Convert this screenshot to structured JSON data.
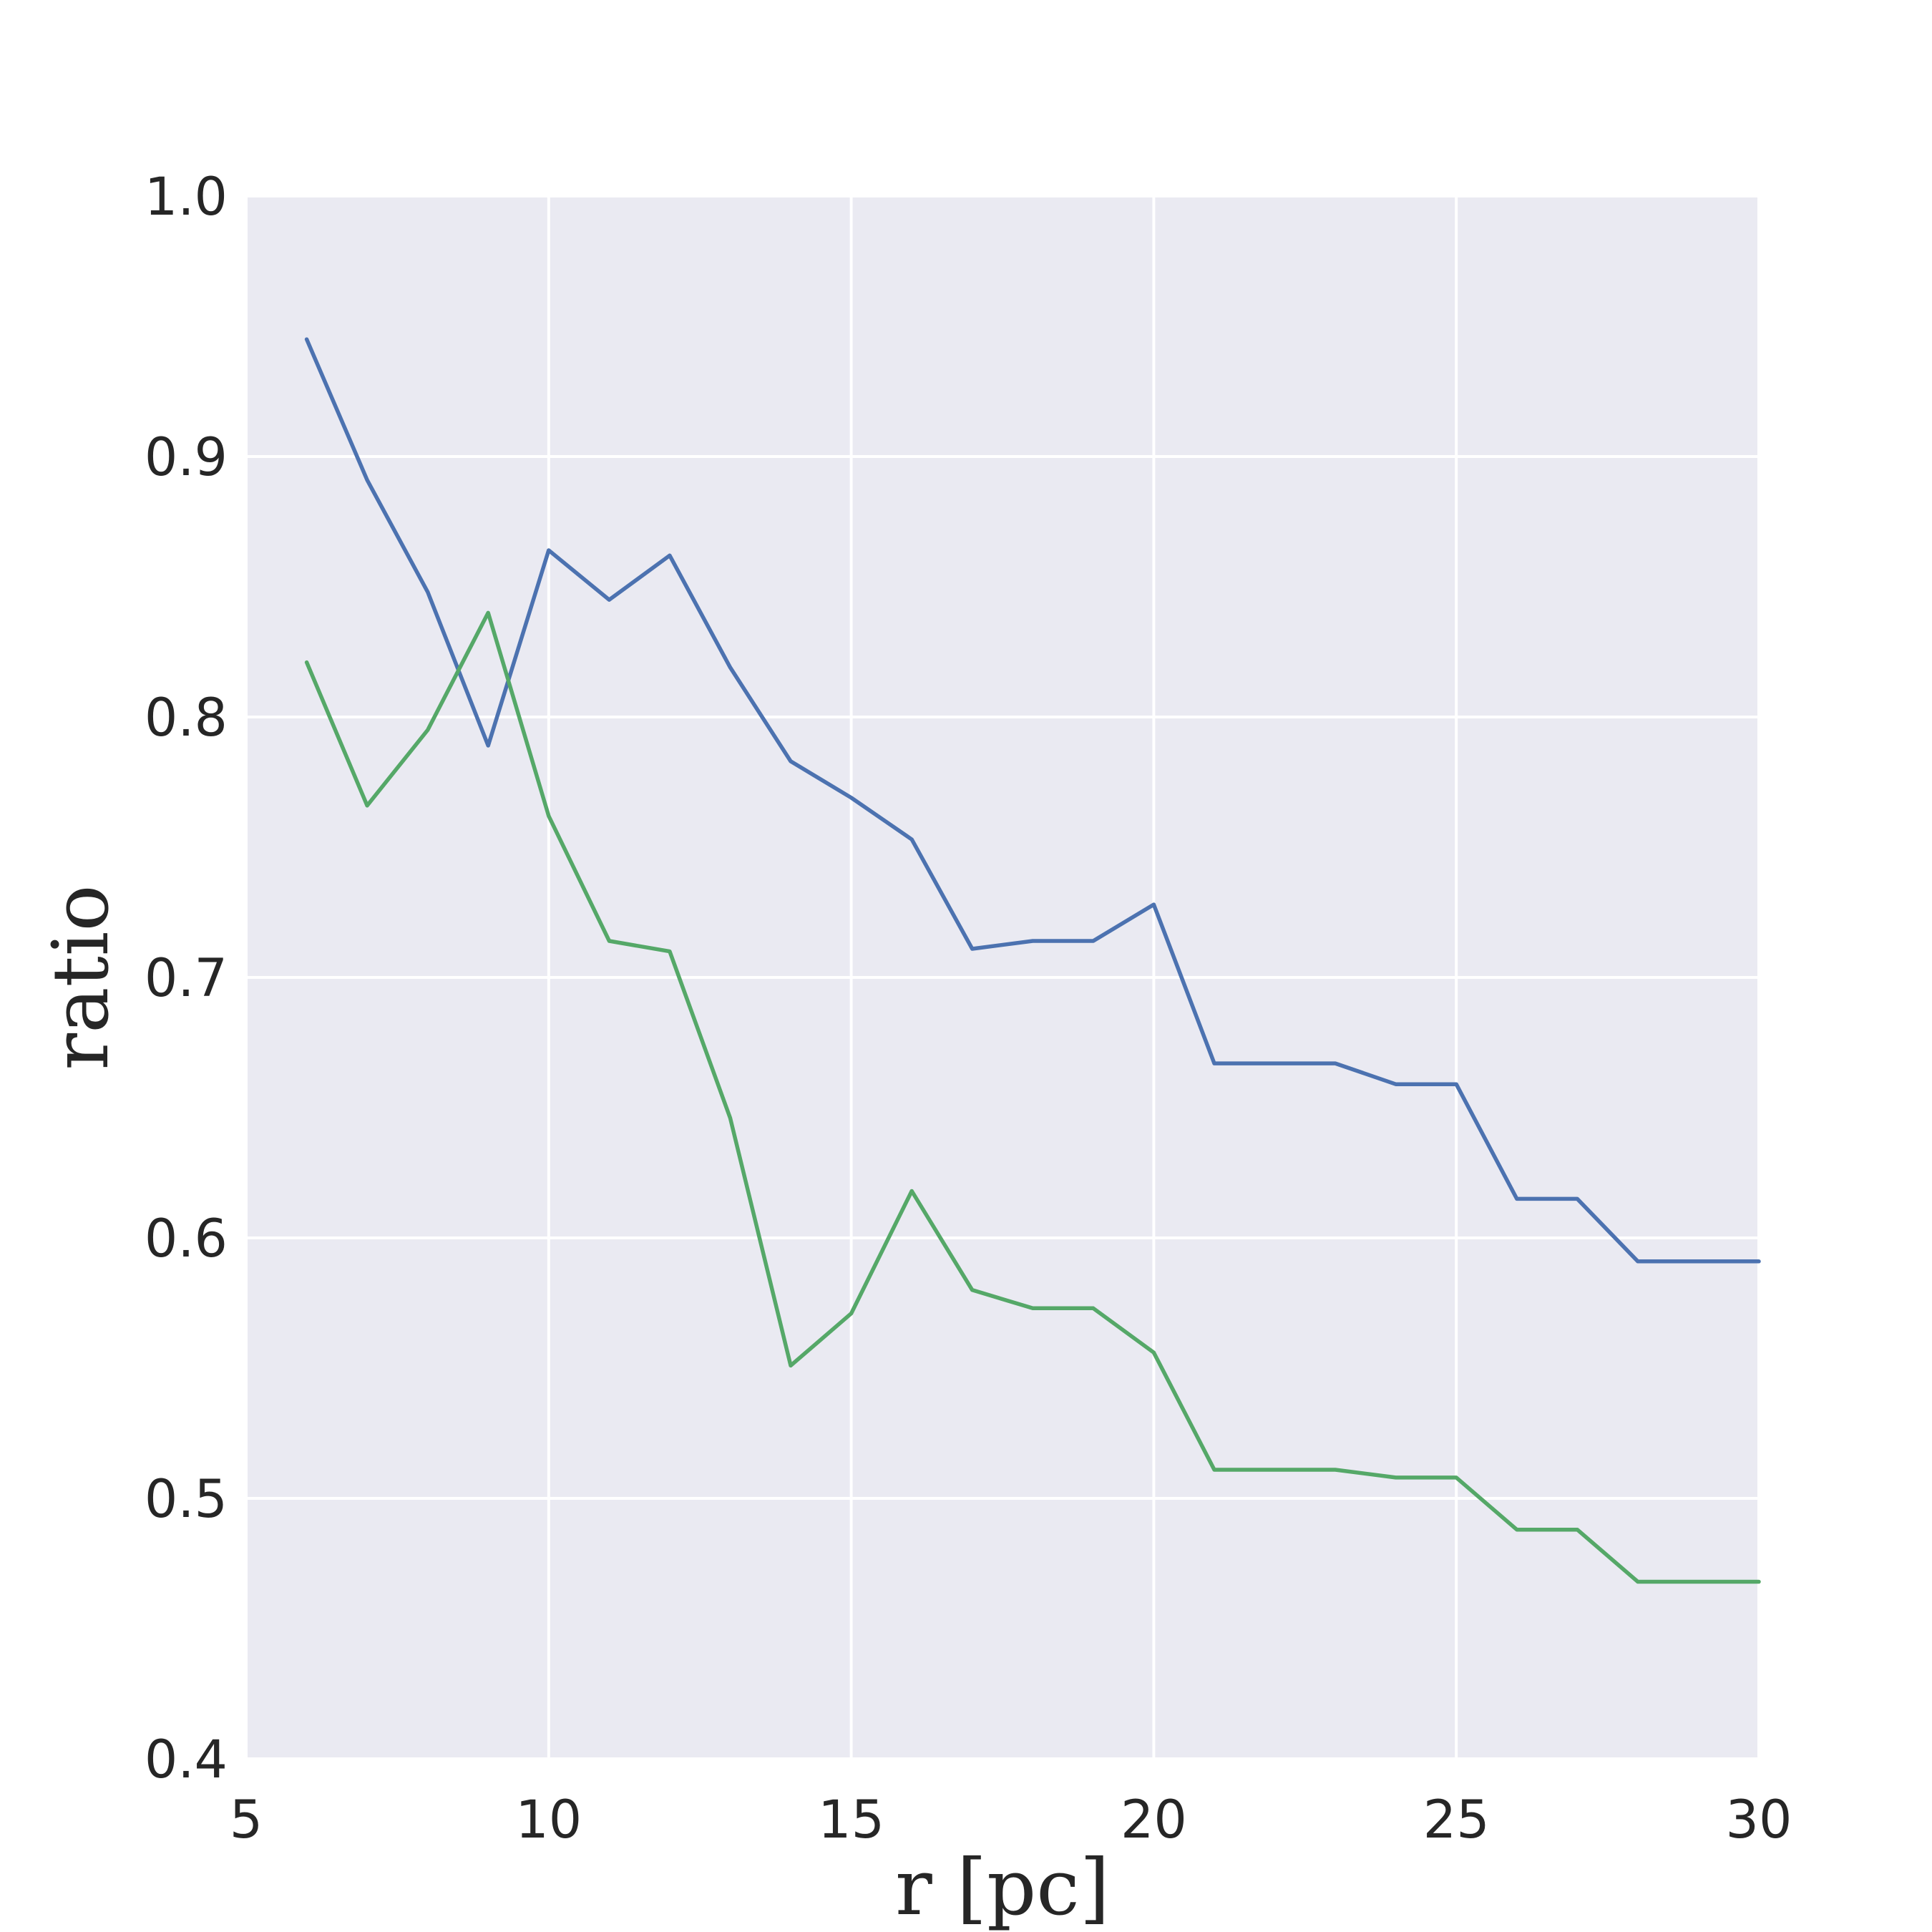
{
  "chart_data": {
    "type": "line",
    "title": "",
    "xlabel": "r [pc]",
    "ylabel": "ratio",
    "xlim": [
      5,
      30
    ],
    "ylim": [
      0.4,
      1.0
    ],
    "xticks": [
      5,
      10,
      15,
      20,
      25,
      30
    ],
    "yticks": [
      0.4,
      0.5,
      0.6,
      0.7,
      0.8,
      0.9,
      1.0
    ],
    "xtick_labels": [
      "5",
      "10",
      "15",
      "20",
      "25",
      "30"
    ],
    "ytick_labels": [
      "0.4",
      "0.5",
      "0.6",
      "0.7",
      "0.8",
      "0.9",
      "1.0"
    ],
    "grid": true,
    "legend": "none",
    "colors": {
      "background": "#eaeaf2",
      "grid": "#ffffff",
      "text": "#262626"
    },
    "x": [
      6,
      7,
      8,
      9,
      10,
      11,
      12,
      13,
      14,
      15,
      16,
      17,
      18,
      19,
      20,
      21,
      22,
      23,
      24,
      25,
      26,
      27,
      28,
      29,
      30
    ],
    "series": [
      {
        "color": "#4c72b0",
        "values": [
          0.945,
          0.891,
          0.848,
          0.789,
          0.864,
          0.845,
          0.862,
          0.819,
          0.783,
          0.769,
          0.753,
          0.711,
          0.714,
          0.714,
          0.728,
          0.667,
          0.667,
          0.667,
          0.659,
          0.659,
          0.615,
          0.615,
          0.591,
          0.591,
          0.591
        ]
      },
      {
        "color": "#55a868",
        "values": [
          0.821,
          0.766,
          0.795,
          0.84,
          0.762,
          0.714,
          0.71,
          0.646,
          0.551,
          0.571,
          0.618,
          0.58,
          0.573,
          0.573,
          0.556,
          0.511,
          0.511,
          0.511,
          0.508,
          0.508,
          0.488,
          0.488,
          0.468,
          0.468,
          0.468
        ]
      }
    ]
  }
}
